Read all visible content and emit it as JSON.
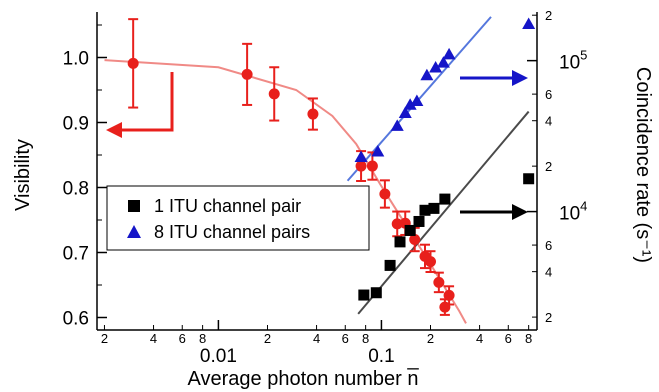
{
  "chart_data": {
    "type": "scatter",
    "xlabel": "Average photon number n̅",
    "ylabel_left": "Visibility",
    "ylabel_right": "Coincidence rate (s⁻¹)",
    "x_scale": "log",
    "xlim": [
      0.0018,
      0.9
    ],
    "ylim_left": [
      0.59,
      1.07
    ],
    "y_right_scale": "log",
    "ylim_right": [
      1800,
      210000
    ],
    "x_major_ticks": [
      {
        "v": 0.01,
        "label": "0.01"
      },
      {
        "v": 0.1,
        "label": "0.1"
      }
    ],
    "x_minor_ticks": [
      {
        "v": 0.002,
        "label": "2"
      },
      {
        "v": 0.004,
        "label": "4"
      },
      {
        "v": 0.006,
        "label": "6"
      },
      {
        "v": 0.008,
        "label": "8"
      },
      {
        "v": 0.02,
        "label": "2"
      },
      {
        "v": 0.04,
        "label": "4"
      },
      {
        "v": 0.06,
        "label": "6"
      },
      {
        "v": 0.08,
        "label": "8"
      },
      {
        "v": 0.2,
        "label": "2"
      },
      {
        "v": 0.4,
        "label": "4"
      },
      {
        "v": 0.6,
        "label": "6"
      },
      {
        "v": 0.8,
        "label": "8"
      }
    ],
    "y_left_ticks": [
      "0.6",
      "0.7",
      "0.8",
      "0.9",
      "1.0"
    ],
    "y_right_major_ticks": [
      {
        "v": 10000,
        "base": "10",
        "exp": "4"
      },
      {
        "v": 100000,
        "base": "10",
        "exp": "5"
      }
    ],
    "y_right_minor_ticks": [
      {
        "v": 2000,
        "label": "2"
      },
      {
        "v": 4000,
        "label": "4"
      },
      {
        "v": 6000,
        "label": "6"
      },
      {
        "v": 20000,
        "label": "2"
      },
      {
        "v": 40000,
        "label": "4"
      },
      {
        "v": 60000,
        "label": "6"
      },
      {
        "v": 200000,
        "label": "2"
      }
    ],
    "visibility_series": {
      "color": "#e8201c",
      "axis": "left",
      "points": [
        {
          "x": 0.003,
          "y": 0.991,
          "err": 0.068
        },
        {
          "x": 0.015,
          "y": 0.974,
          "err": 0.047
        },
        {
          "x": 0.022,
          "y": 0.944,
          "err": 0.041
        },
        {
          "x": 0.038,
          "y": 0.913,
          "err": 0.024
        },
        {
          "x": 0.075,
          "y": 0.833,
          "err": 0.023
        },
        {
          "x": 0.088,
          "y": 0.833,
          "err": 0.021
        },
        {
          "x": 0.105,
          "y": 0.79,
          "err": 0.021
        },
        {
          "x": 0.125,
          "y": 0.744,
          "err": 0.019
        },
        {
          "x": 0.14,
          "y": 0.745,
          "err": 0.018
        },
        {
          "x": 0.16,
          "y": 0.72,
          "err": 0.018
        },
        {
          "x": 0.185,
          "y": 0.694,
          "err": 0.018
        },
        {
          "x": 0.2,
          "y": 0.686,
          "err": 0.016
        },
        {
          "x": 0.225,
          "y": 0.654,
          "err": 0.015
        },
        {
          "x": 0.245,
          "y": 0.616,
          "err": 0.012
        },
        {
          "x": 0.26,
          "y": 0.634,
          "err": 0.014
        }
      ],
      "fit_color": "#f08a86",
      "fit": [
        [
          0.002,
          0.996
        ],
        [
          0.01,
          0.985
        ],
        [
          0.03,
          0.95
        ],
        [
          0.05,
          0.91
        ],
        [
          0.07,
          0.867
        ],
        [
          0.1,
          0.802
        ],
        [
          0.15,
          0.732
        ],
        [
          0.2,
          0.682
        ],
        [
          0.3,
          0.61
        ],
        [
          0.33,
          0.591
        ]
      ]
    },
    "rate_1_channel_series": {
      "name": "1 ITU channel pair",
      "color": "#000000",
      "axis": "right",
      "points": [
        {
          "x": 0.078,
          "y": 2800
        },
        {
          "x": 0.093,
          "y": 2900
        },
        {
          "x": 0.113,
          "y": 4400
        },
        {
          "x": 0.13,
          "y": 6300
        },
        {
          "x": 0.15,
          "y": 7500
        },
        {
          "x": 0.17,
          "y": 8600
        },
        {
          "x": 0.185,
          "y": 10200
        },
        {
          "x": 0.21,
          "y": 10500
        },
        {
          "x": 0.245,
          "y": 12100
        },
        {
          "x": 0.8,
          "y": 16500
        }
      ],
      "fit_color": "#4a4a4a",
      "fit": [
        [
          0.072,
          2100
        ],
        [
          0.8,
          46000
        ]
      ]
    },
    "rate_8_channel_series": {
      "name": "8 ITU channel pairs",
      "color": "#1515c8",
      "axis": "right",
      "points": [
        {
          "x": 0.075,
          "y": 23000
        },
        {
          "x": 0.095,
          "y": 25000
        },
        {
          "x": 0.125,
          "y": 37000
        },
        {
          "x": 0.14,
          "y": 45000
        },
        {
          "x": 0.15,
          "y": 51000
        },
        {
          "x": 0.165,
          "y": 54000
        },
        {
          "x": 0.19,
          "y": 80000
        },
        {
          "x": 0.215,
          "y": 90000
        },
        {
          "x": 0.24,
          "y": 97000
        },
        {
          "x": 0.26,
          "y": 110000
        },
        {
          "x": 0.8,
          "y": 175000
        }
      ],
      "fit_color": "#5577dd",
      "fit": [
        [
          0.062,
          16000
        ],
        [
          0.47,
          195000
        ]
      ]
    },
    "legend": {
      "placement": "center",
      "entries": [
        {
          "label": "1 ITU channel pair",
          "marker": "square",
          "color": "#000000"
        },
        {
          "label": "8 ITU channel pairs",
          "marker": "triangle",
          "color": "#1515c8"
        }
      ]
    },
    "annotations": [
      {
        "type": "bent-arrow",
        "points_to": "left axis",
        "color": "#e8201c"
      },
      {
        "type": "arrow",
        "points_to": "right axis",
        "color": "#1515c8"
      },
      {
        "type": "arrow",
        "points_to": "right axis",
        "color": "#000000"
      }
    ]
  }
}
